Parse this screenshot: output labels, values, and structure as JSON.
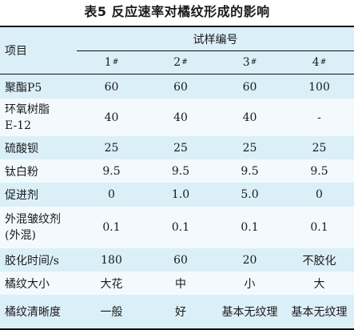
{
  "caption": "表5  反应速率对橘纹形成的影响",
  "header": {
    "item_label": "项目",
    "group_label": "试样编号",
    "samples": [
      {
        "num": "1",
        "mark": "#"
      },
      {
        "num": "2",
        "mark": "#"
      },
      {
        "num": "3",
        "mark": "#"
      },
      {
        "num": "4",
        "mark": "#"
      }
    ]
  },
  "rows": [
    {
      "label": "聚酯P5",
      "label2": "",
      "values": [
        "60",
        "60",
        "60",
        "100"
      ]
    },
    {
      "label": "环氧树脂",
      "label2": "E-12",
      "values": [
        "40",
        "40",
        "40",
        "-"
      ]
    },
    {
      "label": "硫酸钡",
      "label2": "",
      "values": [
        "25",
        "25",
        "25",
        "25"
      ]
    },
    {
      "label": "钛白粉",
      "label2": "",
      "values": [
        "9.5",
        "9.5",
        "9.5",
        "9.5"
      ]
    },
    {
      "label": "促进剂",
      "label2": "",
      "values": [
        "0",
        "1.0",
        "5.0",
        "0"
      ]
    },
    {
      "label": "外混皱纹剂",
      "label2": "(外混)",
      "values": [
        "0.1",
        "0.1",
        "0.1",
        "0.1"
      ]
    },
    {
      "label": "胶化时间/s",
      "label2": "",
      "values": [
        "180",
        "60",
        "20",
        "不胶化"
      ]
    },
    {
      "label": "橘纹大小",
      "label2": "",
      "values": [
        "大花",
        "中",
        "小",
        "大"
      ]
    },
    {
      "label": "橘纹清晰度",
      "label2": "",
      "values": [
        "一般",
        "好",
        "基本无纹理",
        "基本无纹理"
      ]
    }
  ]
}
